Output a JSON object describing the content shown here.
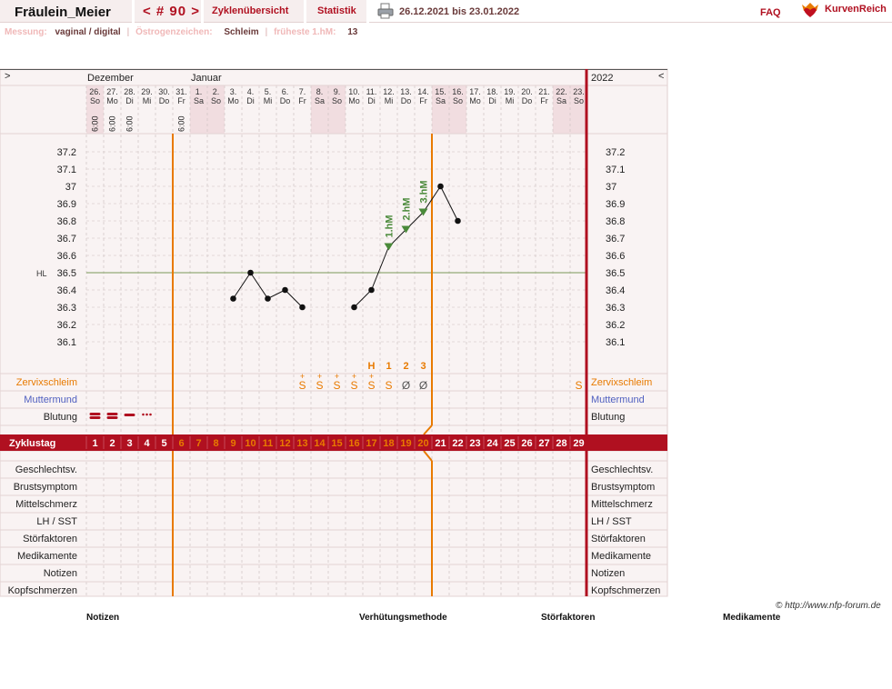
{
  "toolbar": {
    "user": "Fräulein_Meier",
    "cycle": "< # 90 >",
    "overview_label": "Zyklenübersicht",
    "stats_label": "Statistik",
    "print_icon": "printer-icon",
    "date_range": "26.12.2021 bis 23.01.2022",
    "faq_label": "FAQ",
    "brand": "KurvenReich",
    "brand_icon": "heart-crown-icon"
  },
  "info": {
    "measure_label": "Messung:",
    "measure_value": "vaginal / digital",
    "estrogen_label": "Östrogenzeichen:",
    "estrogen_value": "Schleim",
    "earliest_label": "früheste 1.hM:",
    "earliest_value": "13"
  },
  "header": {
    "nav_left": ">",
    "nav_right": "<",
    "year": "2022",
    "month_dec": "Dezember",
    "month_jan": "Januar"
  },
  "days": [
    {
      "n": "26.",
      "d": "So",
      "t": "6:00"
    },
    {
      "n": "27.",
      "d": "Mo",
      "t": "6:00"
    },
    {
      "n": "28.",
      "d": "Di",
      "t": "6:00"
    },
    {
      "n": "29.",
      "d": "Mi",
      "t": ""
    },
    {
      "n": "30.",
      "d": "Do",
      "t": ""
    },
    {
      "n": "31.",
      "d": "Fr",
      "t": "6:00"
    },
    {
      "n": "1.",
      "d": "Sa",
      "t": ""
    },
    {
      "n": "2.",
      "d": "So",
      "t": ""
    },
    {
      "n": "3.",
      "d": "Mo",
      "t": ""
    },
    {
      "n": "4.",
      "d": "Di",
      "t": ""
    },
    {
      "n": "5.",
      "d": "Mi",
      "t": ""
    },
    {
      "n": "6.",
      "d": "Do",
      "t": ""
    },
    {
      "n": "7.",
      "d": "Fr",
      "t": ""
    },
    {
      "n": "8.",
      "d": "Sa",
      "t": ""
    },
    {
      "n": "9.",
      "d": "So",
      "t": ""
    },
    {
      "n": "10.",
      "d": "Mo",
      "t": ""
    },
    {
      "n": "11.",
      "d": "Di",
      "t": ""
    },
    {
      "n": "12.",
      "d": "Mi",
      "t": ""
    },
    {
      "n": "13.",
      "d": "Do",
      "t": ""
    },
    {
      "n": "14.",
      "d": "Fr",
      "t": ""
    },
    {
      "n": "15.",
      "d": "Sa",
      "t": ""
    },
    {
      "n": "16.",
      "d": "So",
      "t": ""
    },
    {
      "n": "17.",
      "d": "Mo",
      "t": ""
    },
    {
      "n": "18.",
      "d": "Di",
      "t": ""
    },
    {
      "n": "19.",
      "d": "Mi",
      "t": ""
    },
    {
      "n": "20.",
      "d": "Do",
      "t": ""
    },
    {
      "n": "21.",
      "d": "Fr",
      "t": ""
    },
    {
      "n": "22.",
      "d": "Sa",
      "t": ""
    },
    {
      "n": "23.",
      "d": "So",
      "t": ""
    }
  ],
  "weekend_cols": [
    0,
    6,
    7,
    13,
    14,
    20,
    21,
    27,
    28
  ],
  "y_ticks": [
    "37.2",
    "37.1",
    "37",
    "36.9",
    "36.8",
    "36.7",
    "36.6",
    "36.5",
    "36.4",
    "36.3",
    "36.2",
    "36.1"
  ],
  "hl_label": "HL",
  "chart_data": {
    "type": "line",
    "ylim": [
      36.0,
      37.3
    ],
    "cover_line": 36.5,
    "x": [
      9,
      10,
      11,
      12,
      13,
      16,
      17,
      18,
      19,
      20,
      21,
      22
    ],
    "y": [
      36.35,
      36.5,
      36.35,
      36.4,
      36.3,
      36.3,
      36.4,
      36.65,
      36.75,
      36.85,
      37.0,
      36.8
    ],
    "markers": [
      {
        "x": 18,
        "label": "1.hM"
      },
      {
        "x": 19,
        "label": "2.hM"
      },
      {
        "x": 20,
        "label": "3.hM"
      }
    ]
  },
  "peak_labels": [
    {
      "col": 16,
      "text": "H"
    },
    {
      "col": 17,
      "text": "1"
    },
    {
      "col": 18,
      "text": "2"
    },
    {
      "col": 19,
      "text": "3"
    }
  ],
  "mucus": [
    {
      "col": 12,
      "text": "S",
      "plus": true,
      "color": "#e87a00"
    },
    {
      "col": 13,
      "text": "S",
      "plus": true,
      "color": "#e87a00"
    },
    {
      "col": 14,
      "text": "S",
      "plus": true,
      "color": "#e87a00"
    },
    {
      "col": 15,
      "text": "S",
      "plus": true,
      "color": "#e87a00"
    },
    {
      "col": 16,
      "text": "S",
      "plus": true,
      "color": "#e87a00"
    },
    {
      "col": 17,
      "text": "S",
      "plus": false,
      "color": "#e87a00"
    },
    {
      "col": 18,
      "text": "Ø",
      "plus": false,
      "color": "#555555"
    },
    {
      "col": 19,
      "text": "Ø",
      "plus": false,
      "color": "#555555"
    },
    {
      "col": 28,
      "text": "S",
      "plus": false,
      "color": "#e87a00"
    }
  ],
  "bleeding": [
    {
      "col": 0,
      "level": "heavy"
    },
    {
      "col": 1,
      "level": "heavy"
    },
    {
      "col": 2,
      "level": "medium"
    },
    {
      "col": 3,
      "level": "spotting"
    }
  ],
  "rows": {
    "zervix": "Zervixschleim",
    "muttermund": "Muttermund",
    "blutung": "Blutung",
    "zyklustag": "Zyklustag"
  },
  "cycle_days": [
    "1",
    "2",
    "3",
    "4",
    "5",
    "6",
    "7",
    "8",
    "9",
    "10",
    "11",
    "12",
    "13",
    "14",
    "15",
    "16",
    "17",
    "18",
    "19",
    "20",
    "21",
    "22",
    "23",
    "24",
    "25",
    "26",
    "27",
    "28",
    "29"
  ],
  "bottom_rows": [
    "Geschlechtsv.",
    "Brustsymptom",
    "Mittelschmerz",
    "LH / SST",
    "Störfaktoren",
    "Medikamente",
    "Notizen",
    "Kopfschmerzen"
  ],
  "colors": {
    "accent": "#b01020",
    "orange": "#e87a00",
    "cover": "#7a9a5a",
    "marker": "#4a8a3a",
    "muttermund": "#5060c0"
  },
  "copyright": "© http://www.nfp-forum.de",
  "footer": {
    "notes": "Notizen",
    "method": "Verhütungsmethode",
    "disturb": "Störfaktoren",
    "meds": "Medikamente"
  }
}
